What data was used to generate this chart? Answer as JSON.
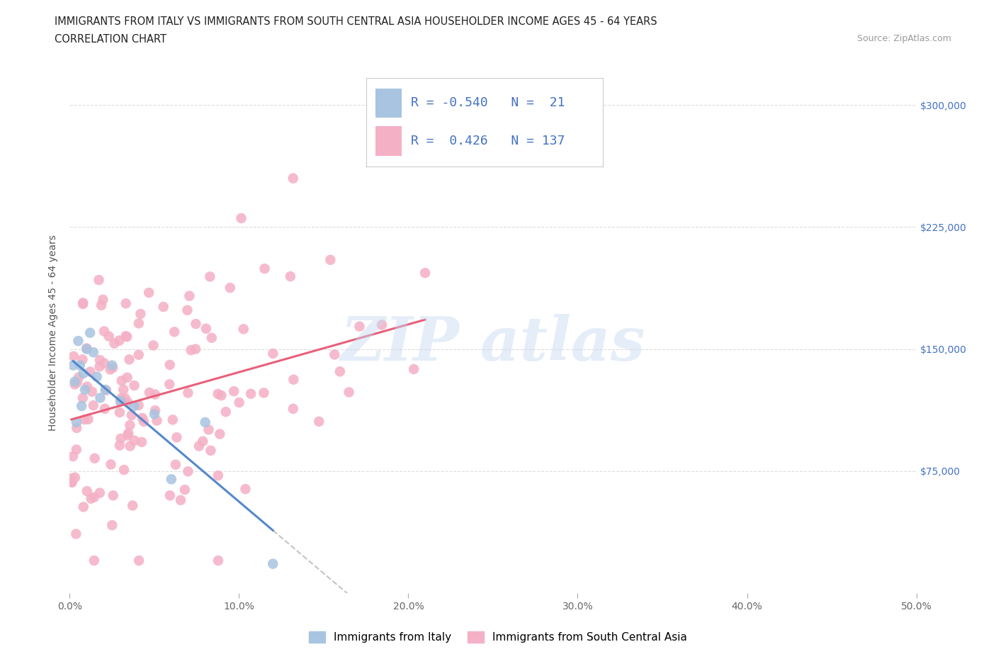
{
  "title_line1": "IMMIGRANTS FROM ITALY VS IMMIGRANTS FROM SOUTH CENTRAL ASIA HOUSEHOLDER INCOME AGES 45 - 64 YEARS",
  "title_line2": "CORRELATION CHART",
  "source_text": "Source: ZipAtlas.com",
  "ylabel": "Householder Income Ages 45 - 64 years",
  "xlim": [
    0.0,
    0.5
  ],
  "ylim": [
    0,
    320000
  ],
  "xticks": [
    0.0,
    0.1,
    0.2,
    0.3,
    0.4,
    0.5
  ],
  "xticklabels": [
    "0.0%",
    "10.0%",
    "20.0%",
    "30.0%",
    "40.0%",
    "50.0%"
  ],
  "yticks": [
    0,
    75000,
    150000,
    225000,
    300000
  ],
  "yticklabels": [
    "",
    "$75,000",
    "$150,000",
    "$225,000",
    "$300,000"
  ],
  "color_italy": "#a8c4e0",
  "color_sca": "#f4b0c4",
  "color_italy_line": "#5588cc",
  "color_sca_line": "#e8607a",
  "color_blue_text": "#4472c4",
  "color_grid": "#dddddd",
  "italy_R": -0.54,
  "italy_N": 21,
  "sca_R": 0.426,
  "sca_N": 137,
  "italy_x": [
    0.002,
    0.003,
    0.004,
    0.005,
    0.006,
    0.007,
    0.008,
    0.009,
    0.01,
    0.012,
    0.014,
    0.016,
    0.018,
    0.021,
    0.025,
    0.03,
    0.038,
    0.05,
    0.06,
    0.08,
    0.12
  ],
  "italy_y": [
    140000,
    130000,
    105000,
    155000,
    140000,
    115000,
    135000,
    125000,
    150000,
    160000,
    148000,
    133000,
    120000,
    125000,
    140000,
    118000,
    115000,
    110000,
    70000,
    105000,
    18000
  ],
  "watermark_text": "ZIP atlas",
  "watermark_color": "#c5d8f0",
  "watermark_alpha": 0.45,
  "legend_label1": "Immigrants from Italy",
  "legend_label2": "Immigrants from South Central Asia"
}
